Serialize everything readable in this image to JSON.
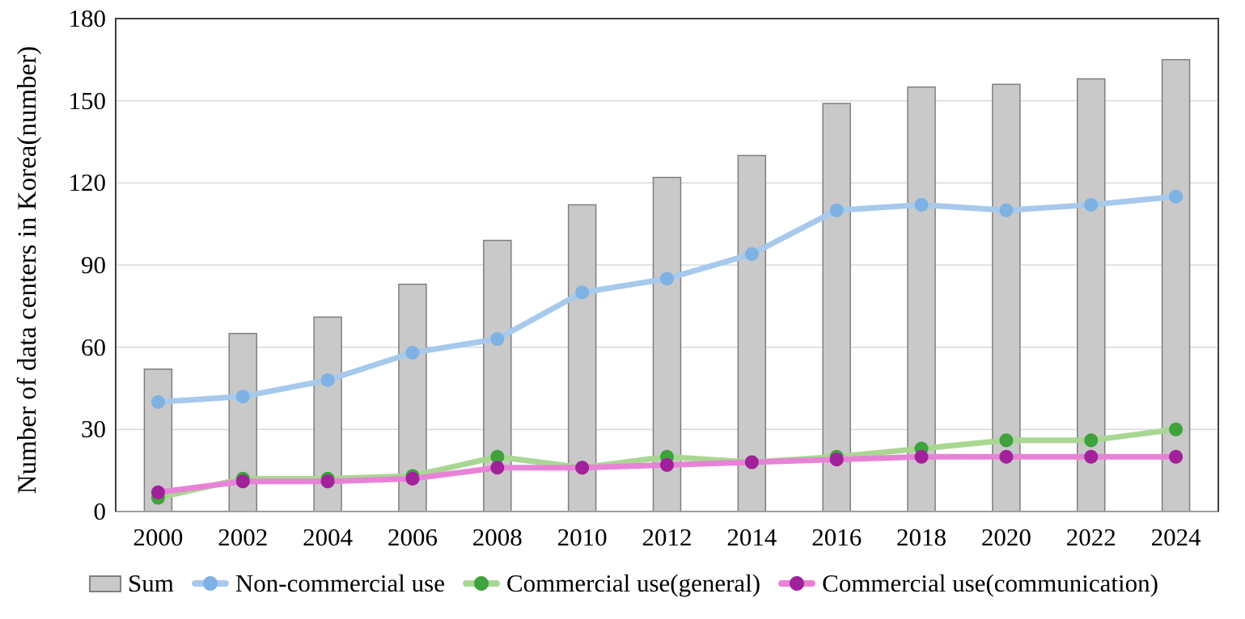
{
  "chart_data": {
    "type": "bar",
    "subtype": "bar-line-combo",
    "title": "",
    "xlabel": "",
    "ylabel": "Number of data centers in Korea(number)",
    "ylim": [
      0,
      180
    ],
    "ytick_step": 30,
    "grid": true,
    "legend_position": "bottom",
    "categories": [
      "2000",
      "2002",
      "2004",
      "2006",
      "2008",
      "2010",
      "2012",
      "2014",
      "2016",
      "2018",
      "2020",
      "2022",
      "2024"
    ],
    "series": [
      {
        "name": "Sum",
        "type": "bar",
        "color": "#C9C9C9",
        "border_color": "#7F7F7F",
        "values": [
          52,
          65,
          71,
          83,
          99,
          112,
          122,
          130,
          149,
          155,
          156,
          158,
          165
        ]
      },
      {
        "name": "Non-commercial use",
        "type": "line",
        "line_color": "#A6C9EC",
        "marker_color": "#7FB2E4",
        "values": [
          40,
          42,
          48,
          58,
          63,
          80,
          85,
          94,
          110,
          112,
          110,
          112,
          115
        ]
      },
      {
        "name": "Commercial use(general)",
        "type": "line",
        "line_color": "#A9D793",
        "marker_color": "#3FA23C",
        "values": [
          5,
          12,
          12,
          13,
          20,
          16,
          20,
          18,
          20,
          23,
          26,
          26,
          30
        ]
      },
      {
        "name": "Commercial use(communication)",
        "type": "line",
        "line_color": "#E783D7",
        "marker_color": "#A1219B",
        "values": [
          7,
          11,
          11,
          12,
          16,
          16,
          17,
          18,
          19,
          20,
          20,
          20,
          20
        ]
      }
    ],
    "axis_colors": {
      "frame": "#3F3F3F",
      "baseline": "#9E9E9E",
      "gridline": "#D9D9D9"
    }
  }
}
